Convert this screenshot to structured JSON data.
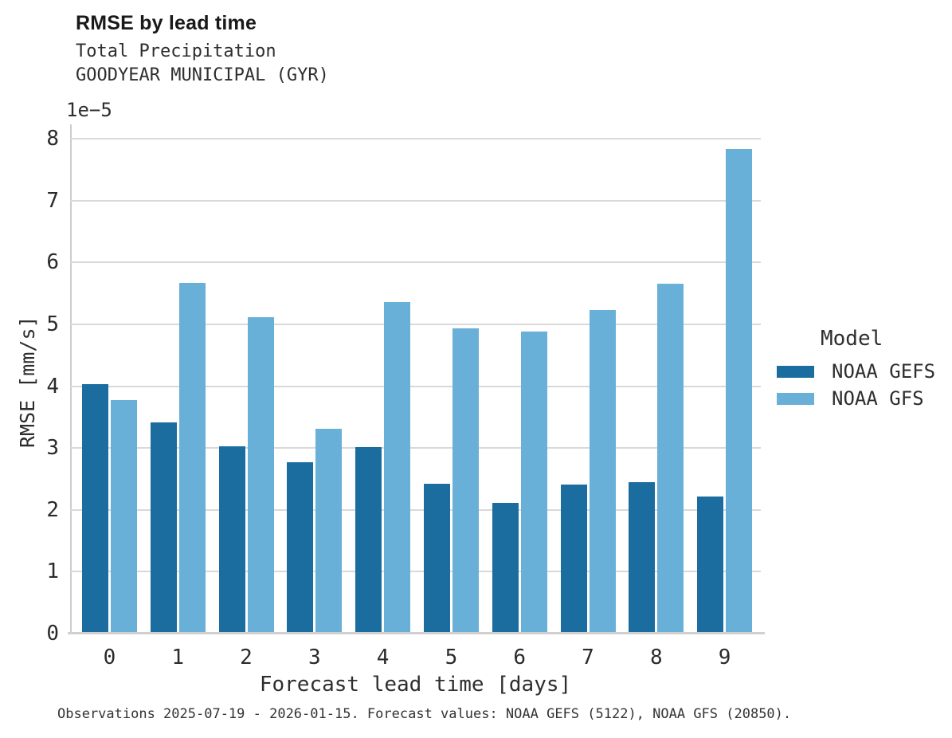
{
  "header": {
    "title": "RMSE by lead time",
    "subtitle_line1": "Total Precipitation",
    "subtitle_line2": "GOODYEAR MUNICIPAL (GYR)"
  },
  "chart_data": {
    "type": "bar",
    "title": "RMSE by lead time",
    "subtitle": [
      "Total Precipitation",
      "GOODYEAR MUNICIPAL (GYR)"
    ],
    "categories": [
      "0",
      "1",
      "2",
      "3",
      "4",
      "5",
      "6",
      "7",
      "8",
      "9"
    ],
    "series": [
      {
        "name": "NOAA GEFS",
        "color": "#1a6d9e",
        "values": [
          4.03,
          3.41,
          3.03,
          2.77,
          3.01,
          2.42,
          2.12,
          2.41,
          2.45,
          2.22
        ]
      },
      {
        "name": "NOAA GFS",
        "color": "#69b0d8",
        "values": [
          3.78,
          5.67,
          5.11,
          3.31,
          5.36,
          4.94,
          4.88,
          5.23,
          5.66,
          7.83
        ]
      }
    ],
    "value_unit_scale": "1e−5",
    "xlabel": "Forecast lead time [days]",
    "ylabel": "RMSE [mm/s]",
    "ylim": [
      0,
      8.24
    ],
    "yticks": [
      0,
      1,
      2,
      3,
      4,
      5,
      6,
      7,
      8
    ],
    "grid": "horizontal",
    "legend_title": "Model",
    "legend_position": "right"
  },
  "legend": {
    "title": "Model",
    "entries": [
      {
        "label": "NOAA GEFS",
        "color": "#1a6d9e"
      },
      {
        "label": "NOAA GFS",
        "color": "#69b0d8"
      }
    ]
  },
  "footer": {
    "caption": "Observations 2025-07-19 - 2026-01-15. Forecast values: NOAA GEFS (5122), NOAA GFS (20850)."
  },
  "colors": {
    "series_dark": "#1a6d9e",
    "series_light": "#69b0d8",
    "gridline": "#d9d9d9",
    "spine": "#cccccc",
    "text": "#2b2b2b"
  }
}
